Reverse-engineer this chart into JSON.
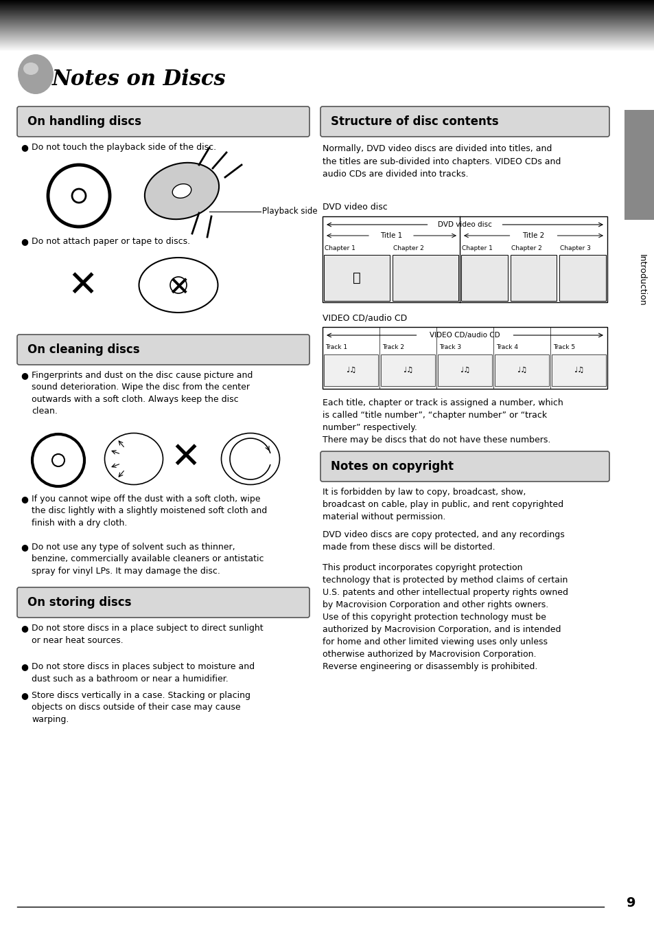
{
  "page_title": "Notes on Discs",
  "bg_color": "#ffffff",
  "page_number": "9",
  "sidebar_color": "#808080",
  "sidebar_text": "Introduction",
  "section_bg": "#e0e0e0",
  "section_border": "#666666",
  "handling_title": "On handling discs",
  "handling_item1": "Do not touch the playback side of the disc.",
  "handling_item2": "Do not attach paper or tape to discs.",
  "cleaning_title": "On cleaning discs",
  "cleaning_item1": "Fingerprints and dust on the disc cause picture and\nsound deterioration. Wipe the disc from the center\noutwards with a soft cloth. Always keep the disc\nclean.",
  "cleaning_item2": "If you cannot wipe off the dust with a soft cloth, wipe\nthe disc lightly with a slightly moistened soft cloth and\nfinish with a dry cloth.",
  "cleaning_item3": "Do not use any type of solvent such as thinner,\nbenzine, commercially available cleaners or antistatic\nspray for vinyl LPs. It may damage the disc.",
  "storing_title": "On storing discs",
  "storing_item1": "Do not store discs in a place subject to direct sunlight\nor near heat sources.",
  "storing_item2": "Do not store discs in places subject to moisture and\ndust such as a bathroom or near a humidifier.",
  "storing_item3": "Store discs vertically in a case. Stacking or placing\nobjects on discs outside of their case may cause\nwarping.",
  "structure_title": "Structure of disc contents",
  "structure_body": "Normally, DVD video discs are divided into titles, and\nthe titles are sub-divided into chapters. VIDEO CDs and\naudio CDs are divided into tracks.",
  "dvd_label": "DVD video disc",
  "dvd_span_label": "DVD video disc",
  "title1_label": "Title 1",
  "title2_label": "Title 2",
  "chap_labels_t1": [
    "Chapter 1",
    "Chapter 2"
  ],
  "chap_labels_t2": [
    "Chapter 1",
    "Chapter 2",
    "Chapter 3"
  ],
  "vcd_label": "VIDEO CD/audio CD",
  "vcd_span_label": "VIDEO CD/audio CD",
  "track_labels": [
    "Track 1",
    "Track 2",
    "Track 3",
    "Track 4",
    "Track 5"
  ],
  "structure_note": "Each title, chapter or track is assigned a number, which\nis called “title number”, “chapter number” or “track\nnumber” respectively.\nThere may be discs that do not have these numbers.",
  "copyright_title": "Notes on copyright",
  "copyright_body1": "It is forbidden by law to copy, broadcast, show,\nbroadcast on cable, play in public, and rent copyrighted\nmaterial without permission.",
  "copyright_body2": "DVD video discs are copy protected, and any recordings\nmade from these discs will be distorted.",
  "copyright_body3": "This product incorporates copyright protection\ntechnology that is protected by method claims of certain\nU.S. patents and other intellectual property rights owned\nby Macrovision Corporation and other rights owners.\nUse of this copyright protection technology must be\nauthorized by Macrovision Corporation, and is intended\nfor home and other limited viewing uses only unless\notherwise authorized by Macrovision Corporation.\nReverse engineering or disassembly is prohibited."
}
